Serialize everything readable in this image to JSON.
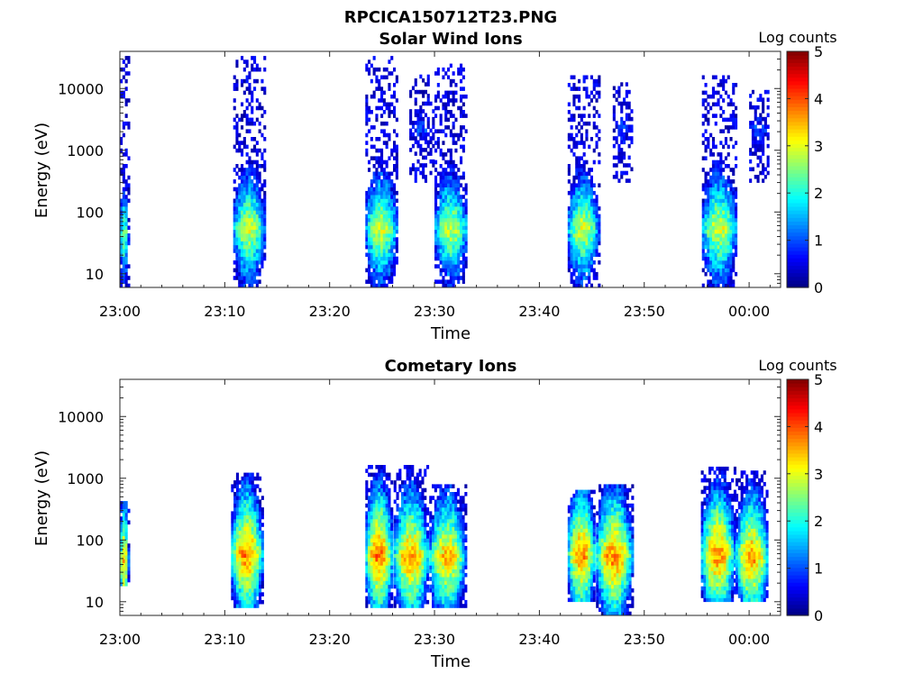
{
  "figure_title": "RPCICA150712T23.PNG",
  "colormap": [
    "#00007f",
    "#0000ff",
    "#007fff",
    "#00ffff",
    "#7fff7f",
    "#ffff00",
    "#ff7f00",
    "#ff0000",
    "#7f0000"
  ],
  "chart_data": [
    {
      "type": "heatmap",
      "title": "Solar Wind Ions",
      "xlabel": "Time",
      "ylabel": "Energy (eV)",
      "x_ticks": [
        "23:00",
        "23:10",
        "23:20",
        "23:30",
        "23:40",
        "23:50",
        "00:00"
      ],
      "xlim_minutes": [
        0,
        63
      ],
      "y_scale": "log",
      "ylim": [
        6,
        40000
      ],
      "y_ticks": [
        {
          "value": 10,
          "label": "10"
        },
        {
          "value": 100,
          "label": "100"
        },
        {
          "value": 1000,
          "label": "1000"
        },
        {
          "value": 10000,
          "label": "10000"
        }
      ],
      "colorbar": {
        "label": "Log counts",
        "range": [
          0,
          5
        ],
        "ticks": [
          {
            "value": 0,
            "label": "0"
          },
          {
            "value": 1,
            "label": "1"
          },
          {
            "value": 2,
            "label": "2"
          },
          {
            "value": 3,
            "label": "3"
          },
          {
            "value": 4,
            "label": "4"
          },
          {
            "value": 5,
            "label": "5"
          }
        ]
      },
      "bursts": [
        {
          "start_min": 0.0,
          "end_min": 0.8,
          "e_peak": 40,
          "peak_log": 2.6,
          "e_min": 6,
          "e_max": 30000
        },
        {
          "start_min": 10.8,
          "end_min": 13.8,
          "e_peak": 50,
          "peak_log": 3.0,
          "e_min": 6,
          "e_max": 30000
        },
        {
          "start_min": 23.4,
          "end_min": 26.4,
          "e_peak": 50,
          "peak_log": 3.0,
          "e_min": 6,
          "e_max": 30000
        },
        {
          "start_min": 27.6,
          "end_min": 29.9,
          "e_peak": 2000,
          "peak_log": 0.9,
          "e_min": 300,
          "e_max": 15000
        },
        {
          "start_min": 30.0,
          "end_min": 33.1,
          "e_peak": 50,
          "peak_log": 2.9,
          "e_min": 6,
          "e_max": 25000
        },
        {
          "start_min": 42.7,
          "end_min": 45.6,
          "e_peak": 50,
          "peak_log": 3.0,
          "e_min": 6,
          "e_max": 15000
        },
        {
          "start_min": 47.0,
          "end_min": 48.9,
          "e_peak": 2000,
          "peak_log": 0.9,
          "e_min": 300,
          "e_max": 12000
        },
        {
          "start_min": 55.5,
          "end_min": 58.8,
          "e_peak": 50,
          "peak_log": 3.0,
          "e_min": 6,
          "e_max": 15000
        },
        {
          "start_min": 60.0,
          "end_min": 61.8,
          "e_peak": 2000,
          "peak_log": 0.9,
          "e_min": 300,
          "e_max": 9000
        }
      ]
    },
    {
      "type": "heatmap",
      "title": "Cometary Ions",
      "xlabel": "Time",
      "ylabel": "Energy (eV)",
      "x_ticks": [
        "23:00",
        "23:10",
        "23:20",
        "23:30",
        "23:40",
        "23:50",
        "00:00"
      ],
      "xlim_minutes": [
        0,
        63
      ],
      "y_scale": "log",
      "ylim": [
        6,
        40000
      ],
      "y_ticks": [
        {
          "value": 10,
          "label": "10"
        },
        {
          "value": 100,
          "label": "100"
        },
        {
          "value": 1000,
          "label": "1000"
        },
        {
          "value": 10000,
          "label": "10000"
        }
      ],
      "colorbar": {
        "label": "Log counts",
        "range": [
          0,
          5
        ],
        "ticks": [
          {
            "value": 0,
            "label": "0"
          },
          {
            "value": 1,
            "label": "1"
          },
          {
            "value": 2,
            "label": "2"
          },
          {
            "value": 3,
            "label": "3"
          },
          {
            "value": 4,
            "label": "4"
          },
          {
            "value": 5,
            "label": "5"
          }
        ]
      },
      "bursts": [
        {
          "start_min": 0.0,
          "end_min": 0.8,
          "e_peak": 40,
          "peak_log": 3.6,
          "e_min": 18,
          "e_max": 400
        },
        {
          "start_min": 10.6,
          "end_min": 13.6,
          "e_peak": 55,
          "peak_log": 3.8,
          "e_min": 8,
          "e_max": 1200
        },
        {
          "start_min": 23.4,
          "end_min": 26.0,
          "e_peak": 55,
          "peak_log": 3.9,
          "e_min": 8,
          "e_max": 1500
        },
        {
          "start_min": 26.1,
          "end_min": 29.4,
          "e_peak": 50,
          "peak_log": 3.7,
          "e_min": 8,
          "e_max": 1500
        },
        {
          "start_min": 29.5,
          "end_min": 32.9,
          "e_peak": 50,
          "peak_log": 3.5,
          "e_min": 8,
          "e_max": 700
        },
        {
          "start_min": 42.7,
          "end_min": 45.3,
          "e_peak": 55,
          "peak_log": 3.8,
          "e_min": 10,
          "e_max": 600
        },
        {
          "start_min": 45.4,
          "end_min": 48.8,
          "e_peak": 50,
          "peak_log": 3.8,
          "e_min": 6,
          "e_max": 800
        },
        {
          "start_min": 55.4,
          "end_min": 58.6,
          "e_peak": 55,
          "peak_log": 3.8,
          "e_min": 10,
          "e_max": 1400
        },
        {
          "start_min": 58.7,
          "end_min": 61.8,
          "e_peak": 50,
          "peak_log": 3.7,
          "e_min": 10,
          "e_max": 1300
        }
      ]
    }
  ]
}
